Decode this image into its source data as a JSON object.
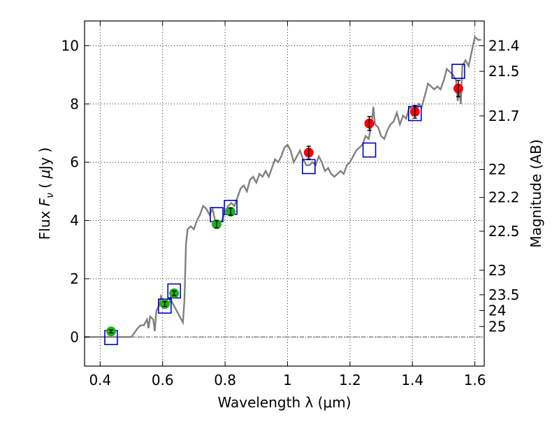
{
  "chart_data": {
    "type": "scatter",
    "xlabel": "Wavelength  λ (μm)",
    "ylabel_parts": [
      "Flux  ",
      "F",
      "ν",
      "  (  ",
      "μ",
      "Jy  )"
    ],
    "ylabel_right": "Magnitude (AB)",
    "xlim": [
      0.35,
      1.63
    ],
    "ylim": [
      -1.0,
      10.85
    ],
    "grid": true,
    "x_ticks": [
      0.4,
      0.6,
      0.8,
      1.0,
      1.2,
      1.4,
      1.6
    ],
    "x_tick_labels": [
      "0.4",
      "0.6",
      "0.8",
      "1",
      "1.2",
      "1.4",
      "1.6"
    ],
    "y_ticks": [
      0,
      2,
      4,
      6,
      8,
      10
    ],
    "y_tick_labels": [
      "0",
      "2",
      "4",
      "6",
      "8",
      "10"
    ],
    "right_ticks": [
      {
        "label": "21.4",
        "flux": 10.0
      },
      {
        "label": "21.5",
        "flux": 9.12
      },
      {
        "label": "21.7",
        "flux": 7.59
      },
      {
        "label": "22",
        "flux": 5.75
      },
      {
        "label": "22.2",
        "flux": 4.79
      },
      {
        "label": "22.5",
        "flux": 3.63
      },
      {
        "label": "23",
        "flux": 2.29
      },
      {
        "label": "23.5",
        "flux": 1.45
      },
      {
        "label": "24",
        "flux": 0.91
      },
      {
        "label": "25",
        "flux": 0.36
      }
    ],
    "colors": {
      "model": "#808080",
      "green": "#19b319",
      "red": "#ff0000",
      "box": "#0000cc",
      "errorbar": "#000000",
      "zeroline": "#555555"
    },
    "model_spectrum": {
      "x": [
        0.35,
        0.4,
        0.45,
        0.48,
        0.5,
        0.52,
        0.53,
        0.54,
        0.55,
        0.555,
        0.56,
        0.57,
        0.575,
        0.58,
        0.59,
        0.595,
        0.6,
        0.61,
        0.62,
        0.625,
        0.63,
        0.64,
        0.645,
        0.65,
        0.66,
        0.665,
        0.67,
        0.675,
        0.68,
        0.69,
        0.7,
        0.71,
        0.72,
        0.73,
        0.74,
        0.75,
        0.76,
        0.77,
        0.78,
        0.79,
        0.8,
        0.81,
        0.82,
        0.83,
        0.84,
        0.85,
        0.86,
        0.87,
        0.88,
        0.89,
        0.9,
        0.91,
        0.92,
        0.93,
        0.94,
        0.95,
        0.96,
        0.97,
        0.98,
        0.99,
        1.0,
        1.01,
        1.02,
        1.03,
        1.04,
        1.05,
        1.06,
        1.07,
        1.08,
        1.09,
        1.1,
        1.11,
        1.12,
        1.13,
        1.14,
        1.15,
        1.16,
        1.17,
        1.18,
        1.19,
        1.2,
        1.21,
        1.22,
        1.23,
        1.24,
        1.25,
        1.26,
        1.27,
        1.275,
        1.28,
        1.29,
        1.3,
        1.31,
        1.32,
        1.33,
        1.34,
        1.35,
        1.36,
        1.37,
        1.38,
        1.39,
        1.4,
        1.41,
        1.42,
        1.43,
        1.44,
        1.45,
        1.46,
        1.47,
        1.48,
        1.49,
        1.5,
        1.51,
        1.52,
        1.53,
        1.54,
        1.545,
        1.55,
        1.555,
        1.56,
        1.57,
        1.58,
        1.59,
        1.6,
        1.61,
        1.62
      ],
      "y": [
        0.0,
        0.0,
        0.0,
        0.0,
        0.0,
        0.3,
        0.4,
        0.4,
        0.6,
        0.3,
        0.7,
        0.6,
        0.2,
        0.9,
        1.1,
        1.4,
        1.3,
        1.2,
        1.1,
        1.35,
        1.2,
        1.0,
        0.9,
        0.8,
        0.6,
        0.5,
        1.3,
        3.2,
        3.7,
        3.8,
        3.7,
        4.0,
        4.2,
        4.5,
        4.4,
        4.2,
        4.4,
        3.9,
        3.9,
        4.0,
        4.3,
        4.5,
        4.6,
        4.5,
        4.8,
        5.1,
        5.2,
        5.0,
        5.4,
        5.5,
        5.3,
        5.6,
        5.5,
        5.7,
        5.5,
        5.8,
        6.1,
        6.0,
        6.2,
        6.5,
        6.6,
        6.4,
        6.0,
        6.2,
        6.4,
        6.1,
        5.9,
        5.9,
        6.0,
        5.9,
        6.2,
        6.0,
        5.7,
        5.8,
        5.6,
        5.5,
        5.6,
        5.7,
        5.6,
        5.9,
        6.0,
        6.2,
        6.4,
        6.5,
        6.6,
        6.9,
        6.8,
        7.4,
        7.9,
        7.3,
        7.2,
        6.9,
        6.8,
        7.1,
        7.3,
        7.4,
        7.7,
        7.3,
        7.6,
        7.5,
        7.9,
        7.8,
        7.7,
        8.0,
        7.9,
        8.3,
        8.7,
        8.6,
        8.5,
        8.6,
        8.5,
        8.8,
        9.2,
        9.1,
        9.0,
        8.8,
        8.1,
        8.5,
        8.0,
        9.3,
        9.5,
        9.3,
        9.8,
        10.3,
        10.2,
        10.2
      ]
    },
    "green_points": [
      {
        "x": 0.435,
        "y": 0.19,
        "err": 0.05
      },
      {
        "x": 0.607,
        "y": 1.13,
        "err": 0.08
      },
      {
        "x": 0.637,
        "y": 1.5,
        "err": 0.08
      },
      {
        "x": 0.773,
        "y": 3.87,
        "err": 0.12
      },
      {
        "x": 0.818,
        "y": 4.3,
        "err": 0.12
      }
    ],
    "red_points": [
      {
        "x": 1.068,
        "y": 6.33,
        "err": 0.22
      },
      {
        "x": 1.262,
        "y": 7.33,
        "err": 0.24
      },
      {
        "x": 1.408,
        "y": 7.73,
        "err": 0.22
      },
      {
        "x": 1.547,
        "y": 8.53,
        "err": 0.28
      }
    ],
    "model_boxes": [
      {
        "x": 0.435,
        "y": -0.02
      },
      {
        "x": 0.607,
        "y": 1.06
      },
      {
        "x": 0.637,
        "y": 1.58
      },
      {
        "x": 0.773,
        "y": 4.2
      },
      {
        "x": 0.818,
        "y": 4.45
      },
      {
        "x": 1.068,
        "y": 5.85
      },
      {
        "x": 1.262,
        "y": 6.42
      },
      {
        "x": 1.408,
        "y": 7.67
      },
      {
        "x": 1.547,
        "y": 9.12
      }
    ]
  }
}
